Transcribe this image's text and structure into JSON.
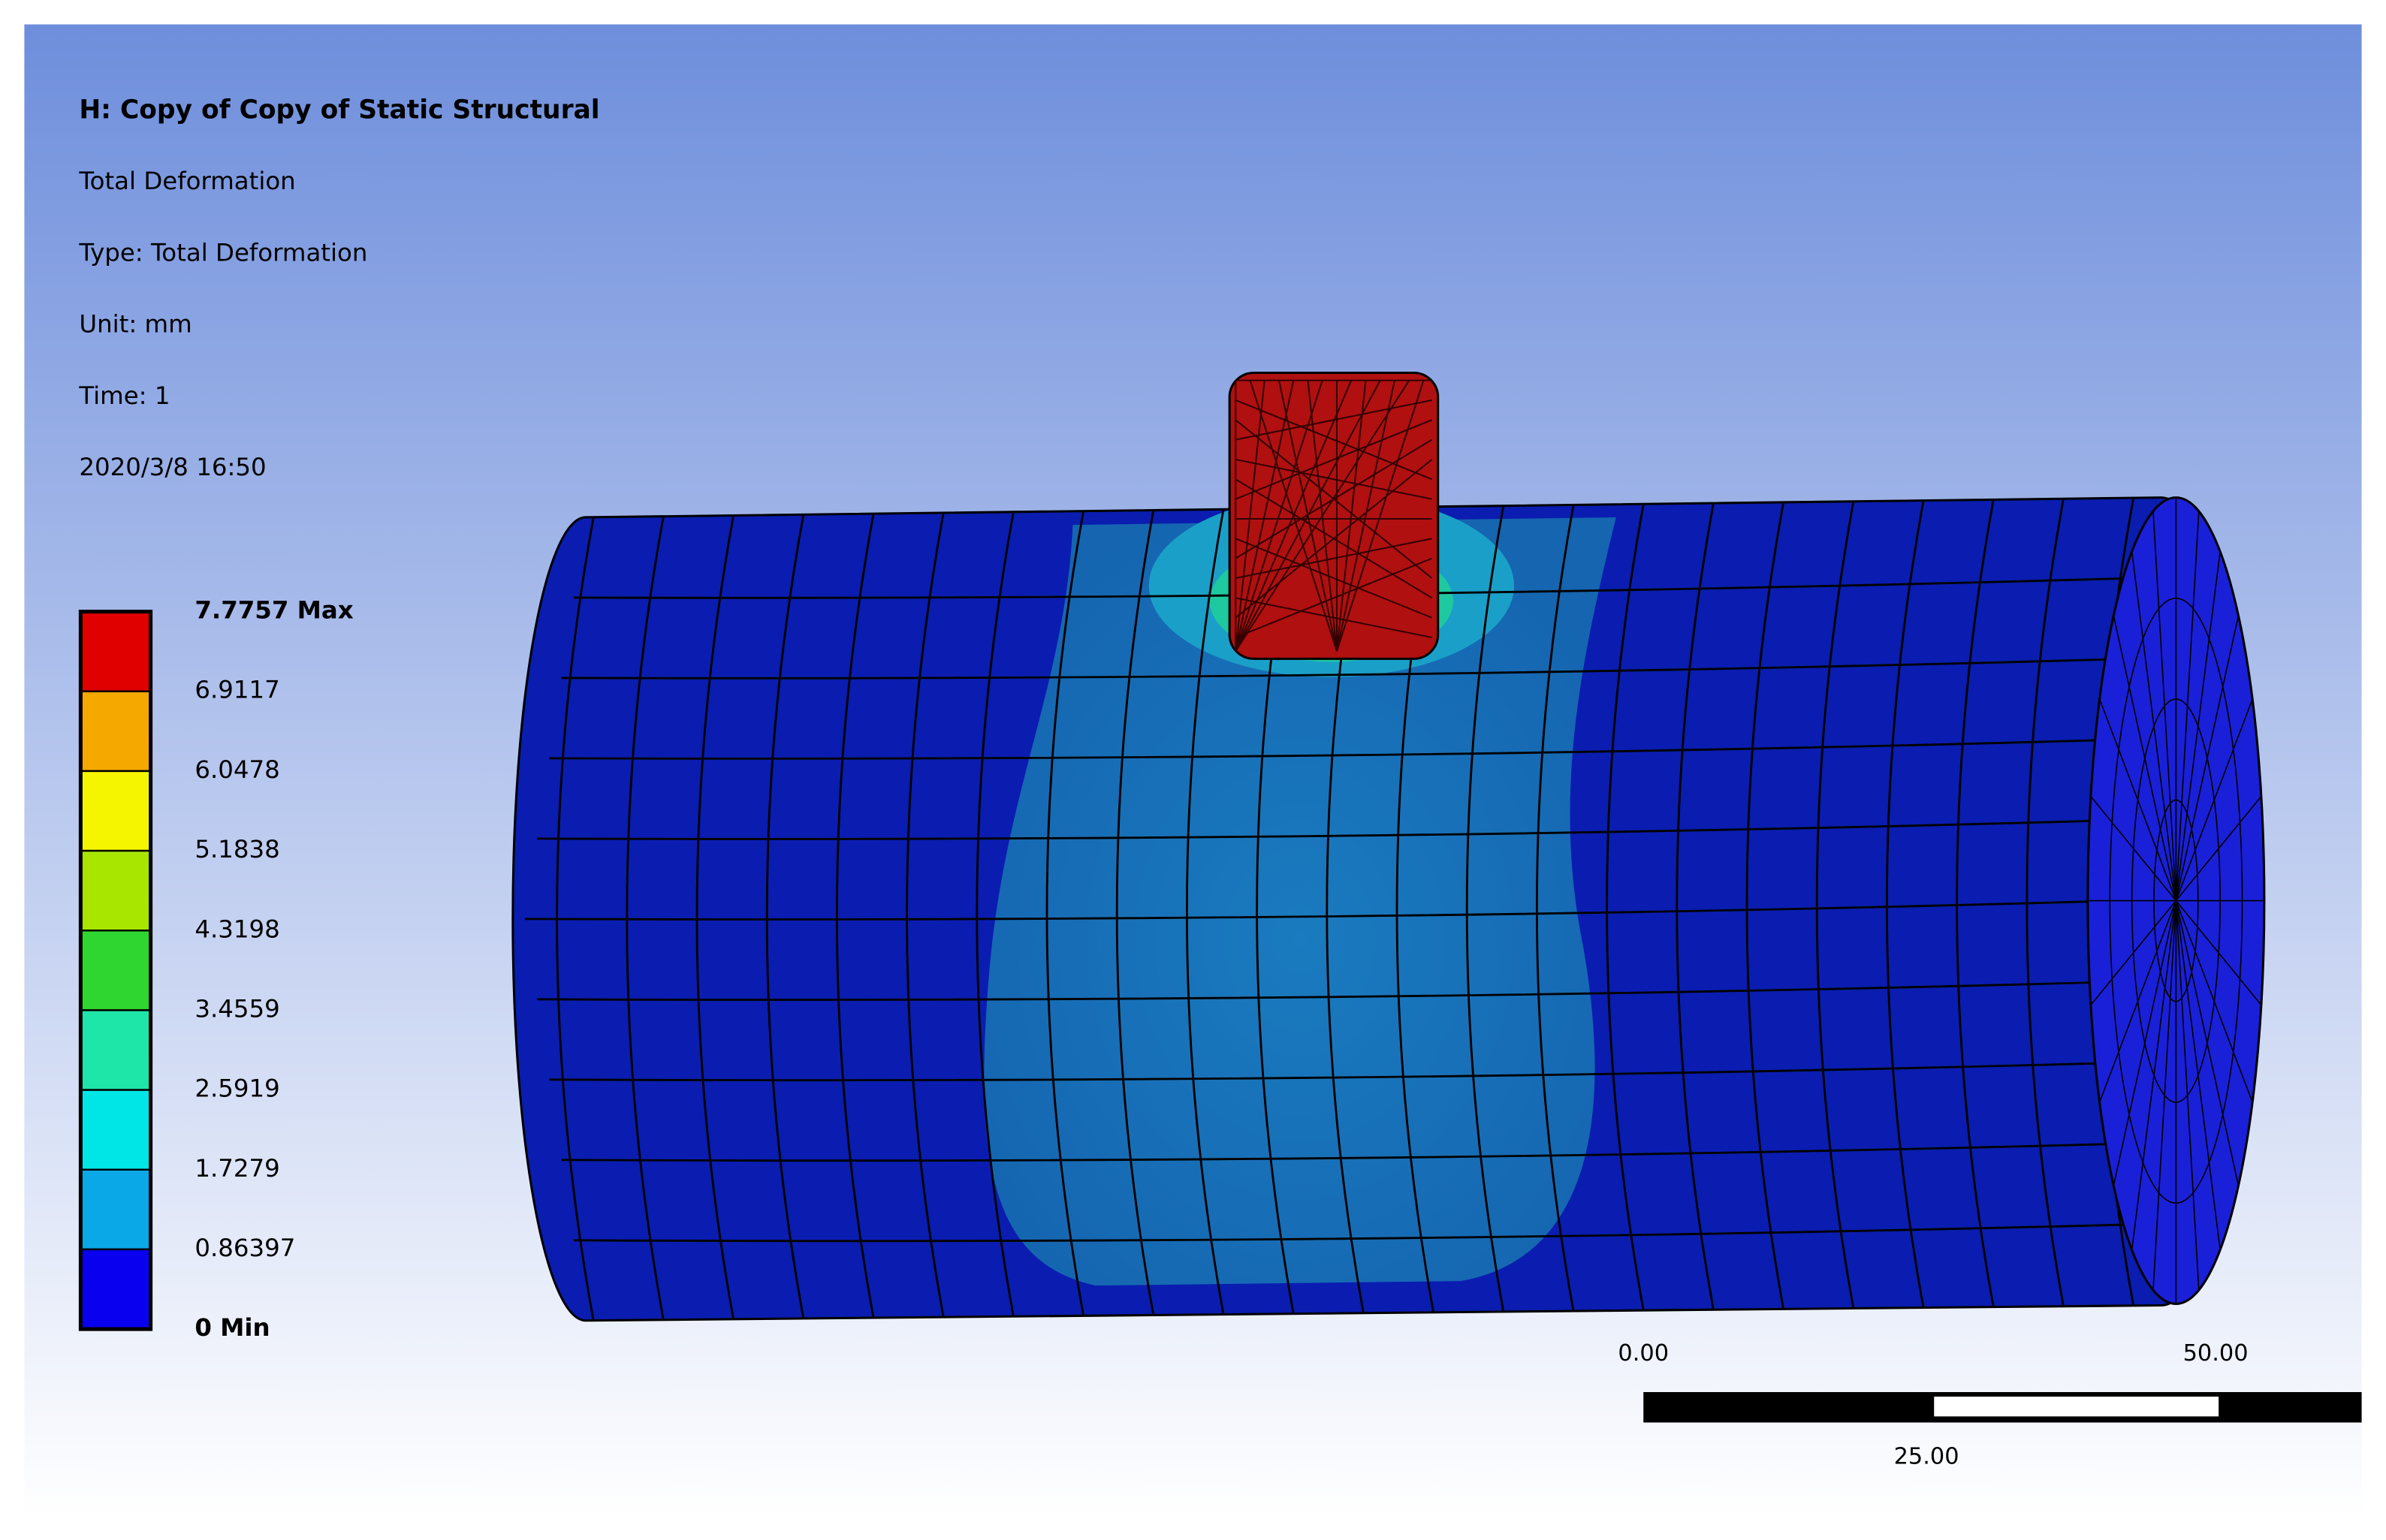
{
  "header": {
    "title": "H: Copy of Copy of Static Structural",
    "lines": [
      "Total Deformation",
      "Type: Total Deformation",
      "Unit: mm",
      "Time: 1",
      "2020/3/8 16:50"
    ]
  },
  "legend": {
    "labels": [
      "7.7757 Max",
      "6.9117",
      "6.0478",
      "5.1838",
      "4.3198",
      "3.4559",
      "2.5919",
      "1.7279",
      "0.86397",
      "0 Min"
    ],
    "colors": [
      "#e00000",
      "#f5a800",
      "#f5f500",
      "#a8e600",
      "#2fd62f",
      "#1ee6a8",
      "#00e6e6",
      "#0aa8e6",
      "#0a00f0"
    ]
  },
  "scale_bar": {
    "left": "0.00",
    "right": "50.00",
    "middle": "25.00"
  }
}
